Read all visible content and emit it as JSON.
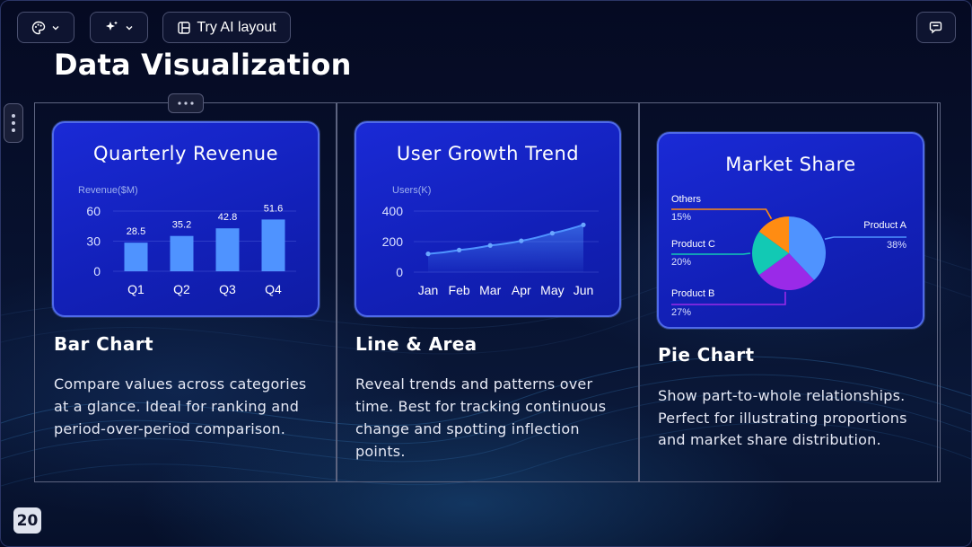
{
  "toolbar": {
    "theme_icon": "palette-icon",
    "magic_icon": "sparkles-icon",
    "ai_layout_icon": "layout-icon",
    "ai_layout_label": "Try AI layout",
    "comments_icon": "comment-icon"
  },
  "slide": {
    "title": "Data Visualization",
    "page_number": "20"
  },
  "columns": [
    {
      "heading": "Bar Chart",
      "description": "Compare values across categories at a glance. Ideal for ranking and period-over-period comparison."
    },
    {
      "heading": "Line & Area",
      "description": "Reveal trends and patterns over time. Best for tracking continuous change and spotting inflection points."
    },
    {
      "heading": "Pie Chart",
      "description": "Show part-to-whole relationships. Perfect for illustrating proportions and market share distribution."
    }
  ],
  "colors": {
    "bar": "#4f93ff",
    "line": "#4f93ff",
    "pie_a": "#4f93ff",
    "pie_b": "#9a2ae8",
    "pie_c": "#12c9b4",
    "pie_others": "#ff8c12"
  },
  "chart_data": [
    {
      "type": "bar",
      "title": "Quarterly Revenue",
      "ylabel": "Revenue($M)",
      "categories": [
        "Q1",
        "Q2",
        "Q3",
        "Q4"
      ],
      "values": [
        28.5,
        35.2,
        42.8,
        51.6
      ],
      "data_labels": [
        "28.5",
        "35.2",
        "42.8",
        "51.6"
      ],
      "yticks": [
        "0",
        "30",
        "60"
      ],
      "ylim": [
        0,
        60
      ],
      "grid": true
    },
    {
      "type": "area",
      "title": "User Growth Trend",
      "ylabel": "Users(K)",
      "categories": [
        "Jan",
        "Feb",
        "Mar",
        "Apr",
        "May",
        "Jun"
      ],
      "values": [
        120,
        145,
        175,
        205,
        255,
        310
      ],
      "yticks": [
        "0",
        "200",
        "400"
      ],
      "ylim": [
        0,
        400
      ],
      "grid": true
    },
    {
      "type": "pie",
      "title": "Market Share",
      "slices": [
        {
          "name": "Product A",
          "label": "38%",
          "value": 38
        },
        {
          "name": "Product B",
          "label": "27%",
          "value": 27
        },
        {
          "name": "Product C",
          "label": "20%",
          "value": 20
        },
        {
          "name": "Others",
          "label": "15%",
          "value": 15
        }
      ]
    }
  ]
}
